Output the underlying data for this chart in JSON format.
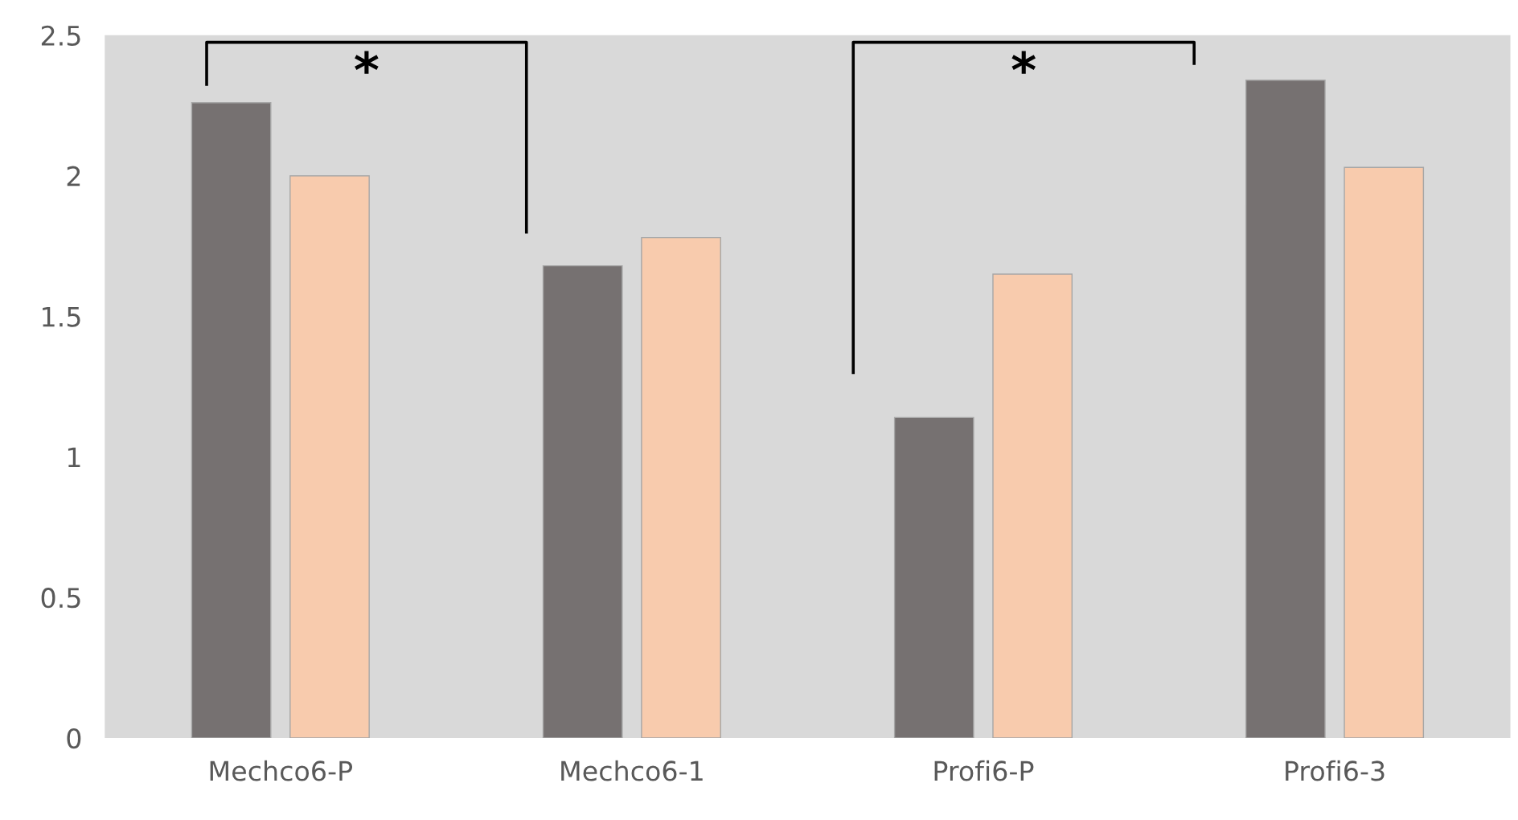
{
  "chart_data": {
    "type": "bar",
    "categories": [
      "Mechco6-P",
      "Mechco6-1",
      "Profi6-P",
      "Profi6-3"
    ],
    "series": [
      {
        "color": "#767171",
        "values": [
          2.26,
          1.68,
          1.14,
          2.34
        ]
      },
      {
        "color": "#f8cbad",
        "values": [
          2.0,
          1.78,
          1.65,
          2.03
        ]
      }
    ],
    "ylim": [
      0,
      2.5
    ],
    "yticks": [
      0,
      0.5,
      1,
      1.5,
      2,
      2.5
    ],
    "grid": false,
    "legend": false,
    "annotations": [
      "*",
      "*"
    ]
  }
}
